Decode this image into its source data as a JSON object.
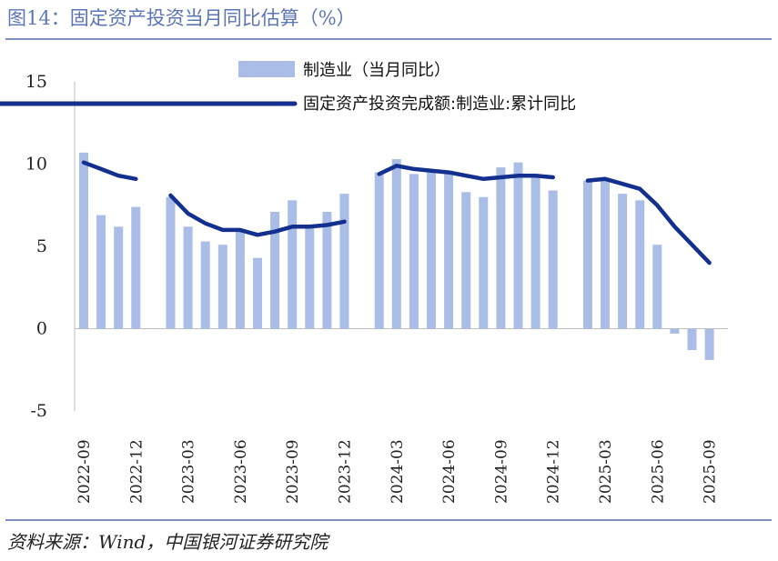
{
  "header": {
    "title": "图14：固定资产投资当月同比估算（%）"
  },
  "footer": {
    "source": "资料来源：Wind，中国银河证券研究院"
  },
  "colors": {
    "bar": "#a9bde6",
    "line": "#14308f",
    "title": "#5b75b5"
  },
  "chart_data": {
    "type": "bar",
    "title": "固定资产投资当月同比估算（%）",
    "ylim": [
      -5,
      15
    ],
    "yticks": [
      15,
      10,
      5,
      0,
      -5
    ],
    "xticks": [
      "2022-09",
      "2022-12",
      "2023-03",
      "2023-06",
      "2023-09",
      "2023-12",
      "2024-03",
      "2024-06",
      "2024-09",
      "2024-12",
      "2025-03",
      "2025-06",
      "2025-09"
    ],
    "categories": [
      "2022-09",
      "2022-10",
      "2022-11",
      "2022-12",
      "2023-01",
      "2023-02",
      "2023-03",
      "2023-04",
      "2023-05",
      "2023-06",
      "2023-07",
      "2023-08",
      "2023-09",
      "2023-10",
      "2023-11",
      "2023-12",
      "2024-01",
      "2024-02",
      "2024-03",
      "2024-04",
      "2024-05",
      "2024-06",
      "2024-07",
      "2024-08",
      "2024-09",
      "2024-10",
      "2024-11",
      "2024-12",
      "2025-01",
      "2025-02",
      "2025-03",
      "2025-04",
      "2025-05",
      "2025-06",
      "2025-07",
      "2025-08",
      "2025-09"
    ],
    "series": [
      {
        "name": "制造业（当月同比）",
        "type": "bar",
        "values": [
          10.7,
          6.9,
          6.2,
          7.4,
          null,
          8.0,
          6.2,
          5.3,
          5.1,
          5.9,
          4.3,
          7.1,
          7.8,
          6.1,
          7.1,
          8.2,
          null,
          9.5,
          10.3,
          9.4,
          9.5,
          9.6,
          8.3,
          8.0,
          9.8,
          10.1,
          9.2,
          8.4,
          null,
          9.0,
          9.1,
          8.2,
          7.8,
          5.1,
          -0.3,
          -1.3,
          -1.9
        ]
      },
      {
        "name": "固定资产投资完成额:制造业:累计同比",
        "type": "line",
        "values": [
          10.1,
          9.7,
          9.3,
          9.1,
          null,
          8.1,
          7.0,
          6.4,
          6.0,
          6.0,
          5.7,
          5.9,
          6.2,
          6.2,
          6.3,
          6.5,
          null,
          9.4,
          9.9,
          9.7,
          9.6,
          9.5,
          9.3,
          9.1,
          9.2,
          9.3,
          9.3,
          9.2,
          null,
          9.0,
          9.1,
          8.8,
          8.5,
          7.5,
          6.2,
          5.1,
          4.0
        ]
      }
    ]
  }
}
